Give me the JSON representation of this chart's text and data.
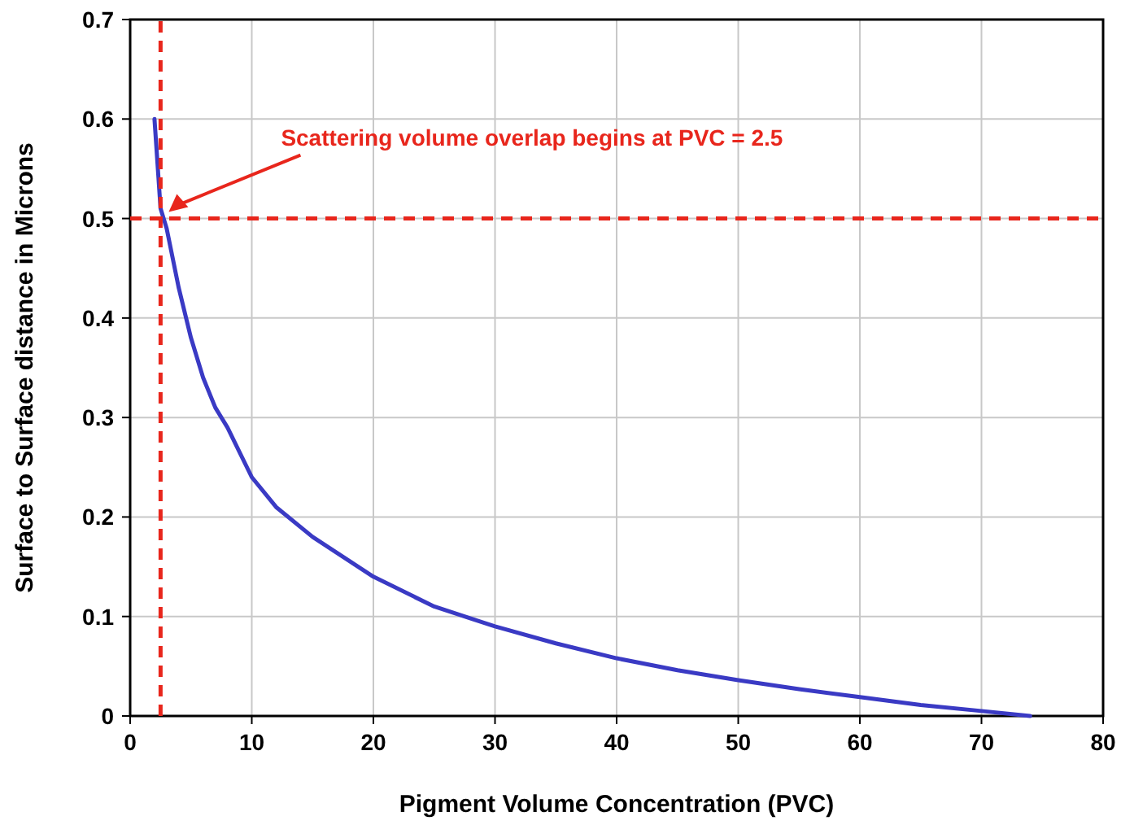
{
  "chart_data": {
    "type": "line",
    "xlabel": "Pigment Volume Concentration (PVC)",
    "ylabel": "Surface to Surface distance in Microns",
    "xlim": [
      0,
      80
    ],
    "ylim": [
      0,
      0.7
    ],
    "xticks": [
      0,
      10,
      20,
      30,
      40,
      50,
      60,
      70,
      80
    ],
    "yticks": [
      0,
      0.1,
      0.2,
      0.3,
      0.4,
      0.5,
      0.6,
      0.7
    ],
    "grid": true,
    "marker": "none",
    "line_style": "solid",
    "series": [
      {
        "color": "#3a3ac4",
        "x": [
          2,
          2.5,
          3,
          4,
          5,
          6,
          7,
          8,
          10,
          12,
          15,
          20,
          25,
          30,
          35,
          40,
          45,
          50,
          55,
          60,
          65,
          70,
          74
        ],
        "values": [
          0.6,
          0.51,
          0.49,
          0.43,
          0.38,
          0.34,
          0.31,
          0.29,
          0.24,
          0.21,
          0.18,
          0.14,
          0.11,
          0.09,
          0.073,
          0.058,
          0.046,
          0.036,
          0.027,
          0.019,
          0.011,
          0.005,
          0
        ]
      }
    ],
    "ref_lines": [
      {
        "axis": "x",
        "value": 2.5,
        "color": "#e8261c",
        "line_style": "dashed"
      },
      {
        "axis": "y",
        "value": 0.5,
        "color": "#e8261c",
        "line_style": "dashed"
      }
    ],
    "annotations": [
      "Scattering volume overlap begins at PVC = 2.5"
    ]
  }
}
